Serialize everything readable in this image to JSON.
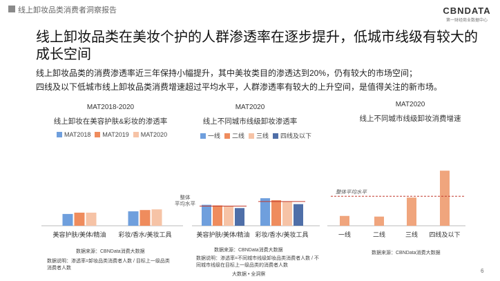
{
  "header": {
    "title": "线上卸妆品类消费者洞察报告"
  },
  "logo": {
    "main": "CBNDATA",
    "sub": "第一财经商业数据中心"
  },
  "page_title": "线上卸妆品类在美妆个护的人群渗透率在逐步提升，低城市线级有较大的成长空间",
  "description": [
    "线上卸妆品类的消费渗透率近三年保持小幅提升，其中美妆类目的渗透达到20%，仍有较大的市场空间；",
    "四线及以下低城市线上卸妆品类消费增速超过平均水平，人群渗透率有较大的上升空间，是值得关注的新市场。"
  ],
  "colors": {
    "mat2018": "#6f9fdd",
    "mat2019": "#ef8c5d",
    "mat2020": "#f6c3a6",
    "tier1": "#6f9fdd",
    "tier2": "#ef8c5d",
    "tier3": "#f6c3a6",
    "tier4": "#4f6fa8",
    "growth": "#f0a57d",
    "avgline": "#c0392b"
  },
  "charts": [
    {
      "period": "MAT2018-2020",
      "title": "线上卸妆在美容护肤&彩妆的渗透率",
      "legend": [
        "MAT2018",
        "MAT2019",
        "MAT2020"
      ],
      "source": "数据来源：CBNData消费大数据",
      "note": "数据说明：渗透率=卸妆品类消费者人数 / 目标上一级品类消费者人数"
    },
    {
      "period": "MAT2020",
      "title": "线上不同城市线级卸妆渗透率",
      "legend": [
        "一线",
        "二线",
        "三线",
        "四线及以下"
      ],
      "avg_label": "整体平均水平",
      "source": "数据来源：CBNData消费大数据",
      "note": "数据说明：渗透率=不同城市线级卸妆品类消费者人数 / 不同城市线级在目标上一级品类的消费者人数",
      "footer": "大数据 • 全洞察"
    },
    {
      "period": "MAT2020",
      "title": "线上不同城市线级卸妆消费增速",
      "avg_label": "整体平均水平",
      "source": "数据来源：CBNData消费大数据"
    }
  ],
  "chart_data": [
    {
      "type": "bar",
      "categories": [
        "美容护肤/美体/精油",
        "彩妆/香水/美妆工具"
      ],
      "series": [
        {
          "name": "MAT2018",
          "values": [
            0.9,
            1.1
          ]
        },
        {
          "name": "MAT2019",
          "values": [
            1.0,
            1.2
          ]
        },
        {
          "name": "MAT2020",
          "values": [
            1.0,
            1.25
          ]
        }
      ],
      "ylim": [
        0,
        5
      ],
      "grid": false,
      "legend": "top"
    },
    {
      "type": "bar",
      "categories": [
        "美容护肤/美体/精油",
        "彩妆/香水/美妆工具"
      ],
      "series": [
        {
          "name": "一线",
          "values": [
            1.6,
            2.1
          ]
        },
        {
          "name": "二线",
          "values": [
            1.55,
            1.95
          ]
        },
        {
          "name": "三线",
          "values": [
            1.5,
            1.85
          ]
        },
        {
          "name": "四线及以下",
          "values": [
            1.35,
            1.65
          ]
        }
      ],
      "reference_lines": [
        {
          "label": "整体平均水平",
          "values": [
            1.5,
            1.85
          ]
        }
      ],
      "ylim": [
        0,
        5
      ],
      "grid": false,
      "legend": "top"
    },
    {
      "type": "bar",
      "categories": [
        "一线",
        "二线",
        "三线",
        "四线及以下"
      ],
      "values": [
        0.75,
        0.7,
        2.15,
        4.2
      ],
      "reference_line": {
        "label": "整体平均水平",
        "value": 2.25
      },
      "ylim": [
        0,
        5
      ],
      "grid": false
    }
  ],
  "page_number": "6"
}
